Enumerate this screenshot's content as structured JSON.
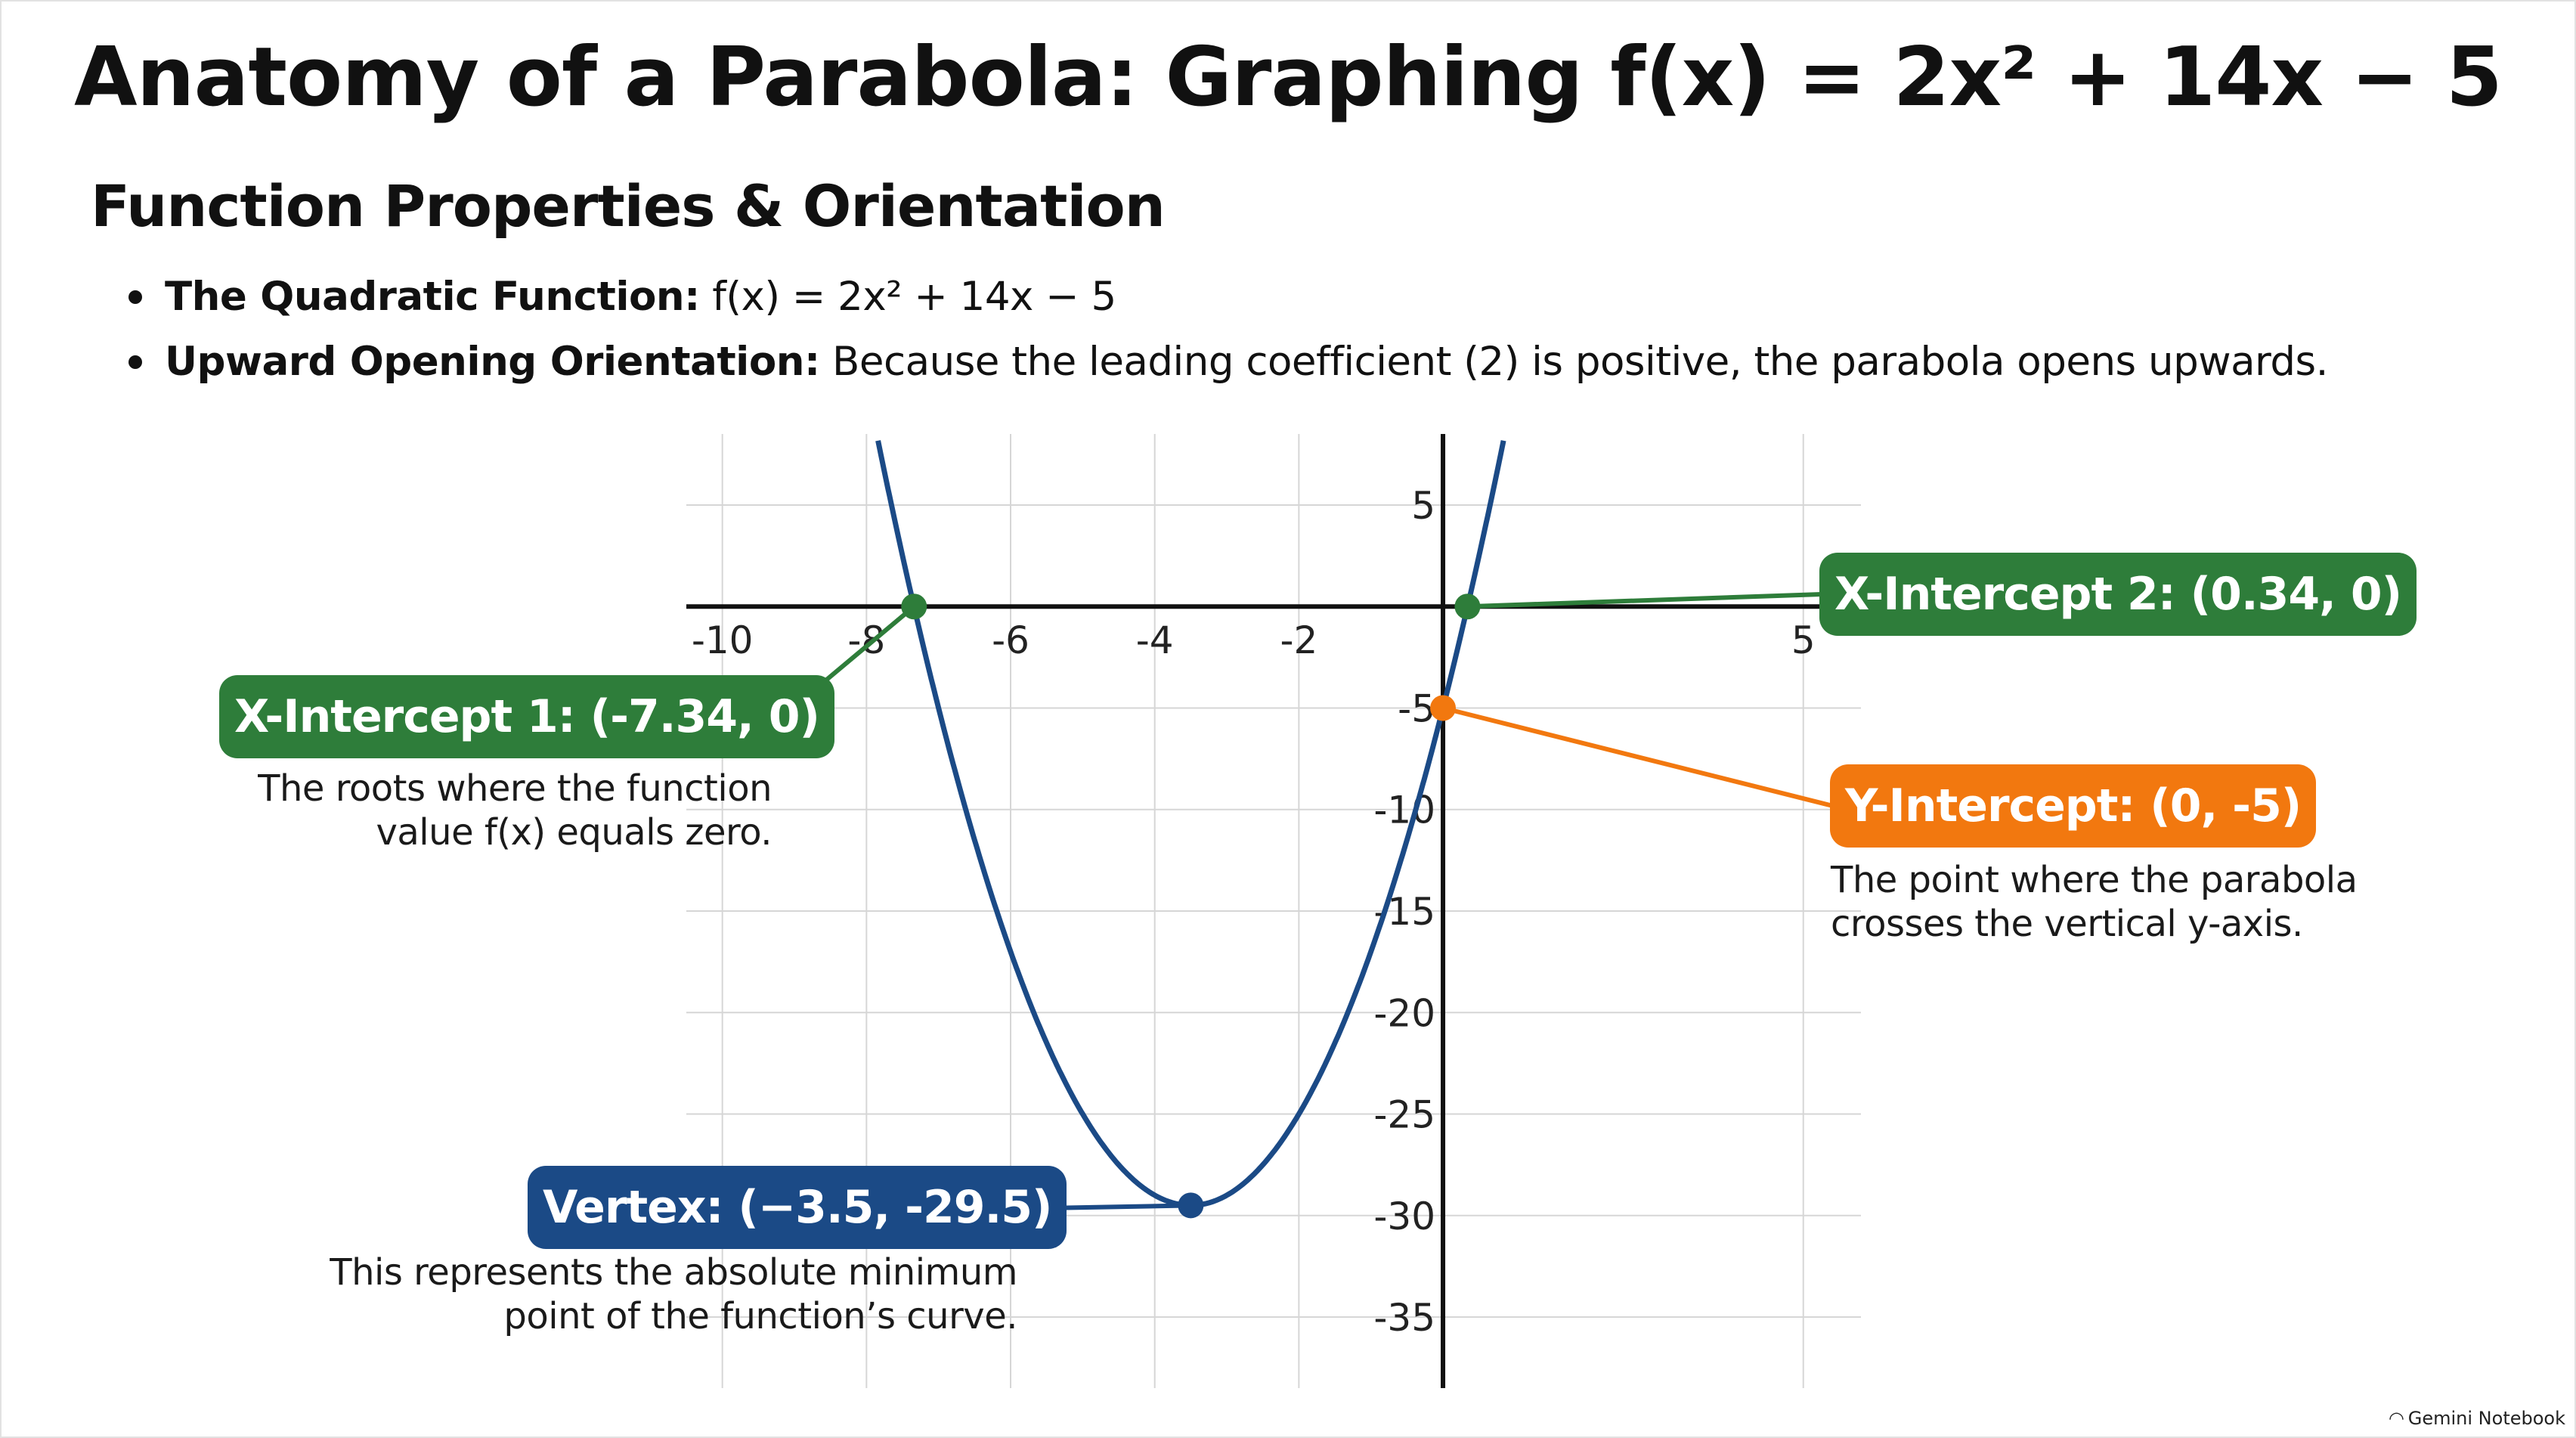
{
  "title": "Anatomy of a Parabola: Graphing f(x) = 2x² + 14x − 5",
  "section_heading": "Function Properties & Orientation",
  "bullets": [
    {
      "label": "The Quadratic Function:",
      "text": " f(x) = 2x² + 14x − 5"
    },
    {
      "label": "Upward Opening Orientation:",
      "text": " Because the leading coefficient (2) is positive, the parabola opens upwards."
    }
  ],
  "callouts": {
    "x_intercept_1": {
      "label": "X-Intercept 1: (-7.34, 0)",
      "desc": "The roots where the function\nvalue f(x) equals zero."
    },
    "x_intercept_2": {
      "label": "X-Intercept 2: (0.34, 0)"
    },
    "y_intercept": {
      "label": "Y-Intercept: (0, -5)",
      "desc": "The point where the parabola\ncrosses the vertical y-axis."
    },
    "vertex": {
      "label": "Vertex: (−3.5, -29.5)",
      "desc": "This represents the absolute minimum\npoint of the function’s curve."
    }
  },
  "colors": {
    "curve": "#1b4a86",
    "green": "#2e7d3a",
    "orange": "#f2780f",
    "blue": "#1b4a86",
    "grid": "#d6d6d6",
    "axis": "#111111"
  },
  "chart_data": {
    "type": "line",
    "function": "f(x) = 2x² + 14x − 5",
    "coefficients": {
      "a": 2,
      "b": 14,
      "c": -5
    },
    "x_tick_labels": [
      "-10",
      "-8",
      "-6",
      "-4",
      "-2",
      "5"
    ],
    "y_tick_labels": [
      "5",
      "-5",
      "-10",
      "-15",
      "-20",
      "-25",
      "-30",
      "-35"
    ],
    "xlim": [
      -10.5,
      5.8
    ],
    "ylim": [
      -38.5,
      8.5
    ],
    "x_tick_values": [
      -10,
      -8,
      -6,
      -4,
      -2,
      5
    ],
    "y_tick_values": [
      5,
      -5,
      -10,
      -15,
      -20,
      -25,
      -30,
      -35
    ],
    "grid": true,
    "key_points": [
      {
        "name": "X-Intercept 1",
        "x": -7.34,
        "y": 0,
        "color": "#2e7d3a"
      },
      {
        "name": "X-Intercept 2",
        "x": 0.34,
        "y": 0,
        "color": "#2e7d3a"
      },
      {
        "name": "Y-Intercept",
        "x": 0,
        "y": -5,
        "color": "#f2780f"
      },
      {
        "name": "Vertex",
        "x": -3.5,
        "y": -29.5,
        "color": "#1b4a86"
      }
    ]
  },
  "brand": {
    "logo": "◠",
    "name": "Gemini Notebook"
  }
}
